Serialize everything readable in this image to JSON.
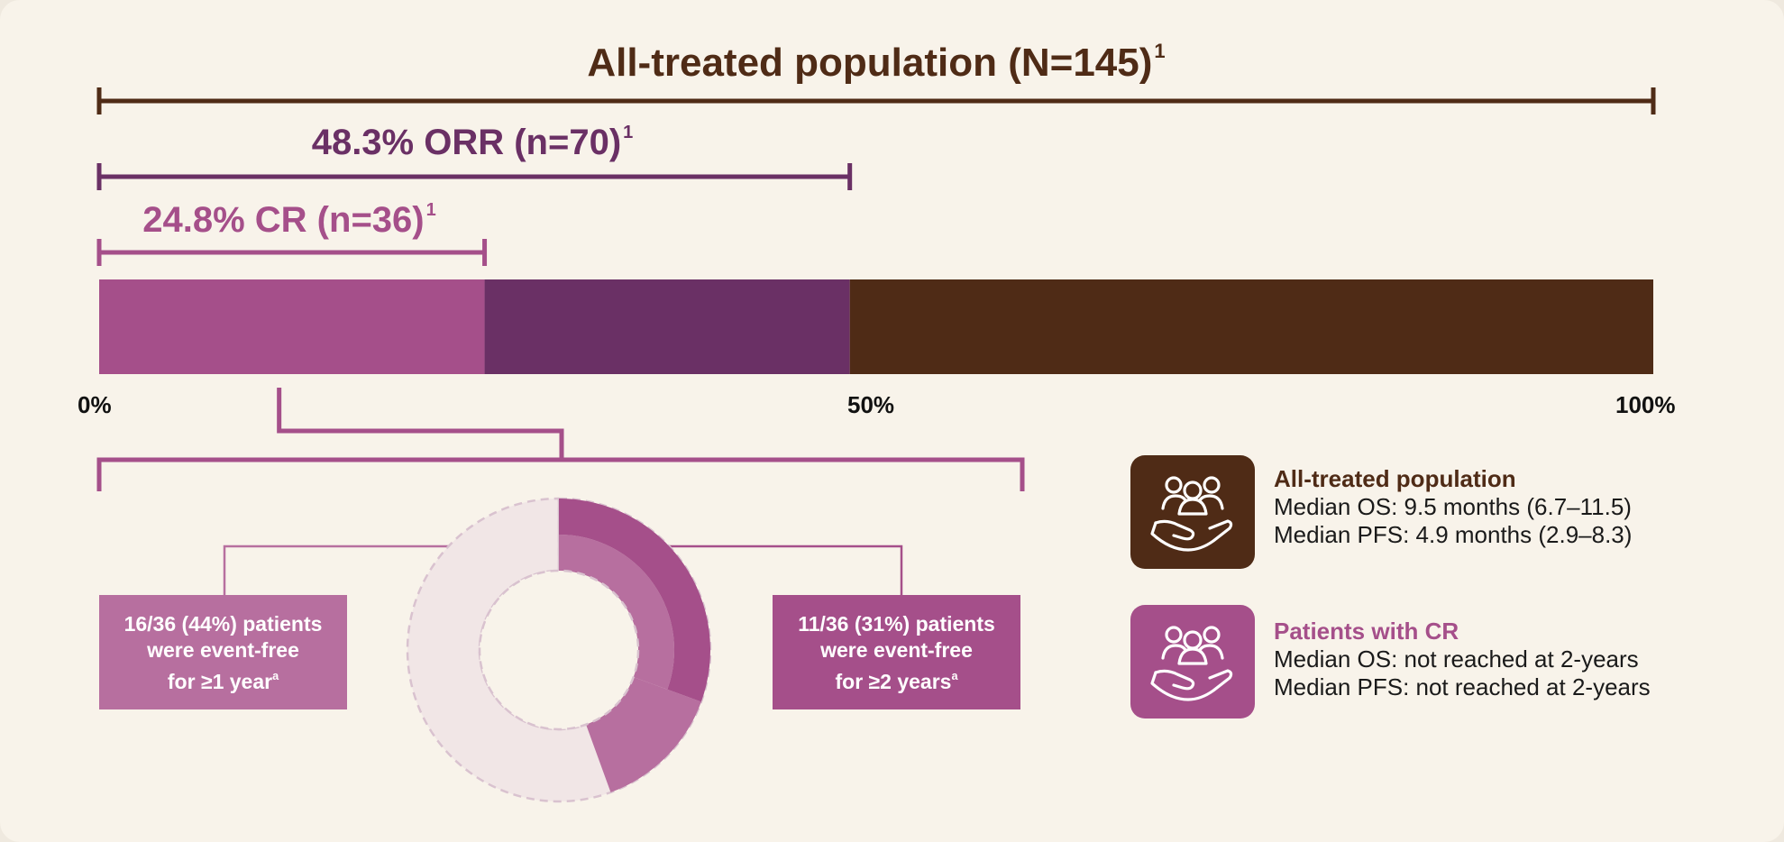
{
  "chart_data": {
    "type": "bar",
    "orientation": "horizontal",
    "stacked": true,
    "xlim": [
      0,
      100
    ],
    "ticks": [
      "0%",
      "50%",
      "100%"
    ],
    "groups": [
      {
        "pre": "All-treated population (N=145)",
        "sup": "1",
        "start": 0,
        "end": 100,
        "color": "#4f2b16"
      },
      {
        "pre": "48.3% ORR (n=70)",
        "sup": "1",
        "start": 0,
        "end": 48.3,
        "color": "#6a3065"
      },
      {
        "pre": "24.8% CR (n=36)",
        "sup": "1",
        "start": 0,
        "end": 24.8,
        "color": "#a54f8a"
      }
    ],
    "segments": [
      {
        "start": 0,
        "end": 24.8,
        "color": "#a54f8a"
      },
      {
        "start": 24.8,
        "end": 48.3,
        "color": "#6a3065"
      },
      {
        "start": 48.3,
        "end": 100,
        "color": "#4f2b16"
      }
    ],
    "donut": {
      "total": 36,
      "outer_value": 11,
      "inner_value": 16,
      "outer_color": "#a54f8a",
      "inner_color": "#b76f9f",
      "rest_color": "#f1e6e6"
    }
  },
  "callouts": {
    "left": {
      "l1": "16/36 (44%) patients",
      "l2": "were event-free",
      "l3": "for ≥1 year",
      "sup": "a",
      "color": "#b76f9f"
    },
    "right": {
      "l1": "11/36 (31%) patients",
      "l2": "were event-free",
      "l3": "for ≥2 years",
      "sup": "a",
      "color": "#a54f8a"
    }
  },
  "info": {
    "all": {
      "title": "All-treated population",
      "line1": "Median OS: 9.5 months (6.7–11.5)",
      "line2": "Median PFS: 4.9 months (2.9–8.3)",
      "icon": "people-in-hand-icon",
      "color": "#4f2b16"
    },
    "cr": {
      "title": "Patients with CR",
      "line1": "Median OS: not reached at 2-years",
      "line2": "Median PFS: not reached at 2-years",
      "icon": "people-in-hand-icon",
      "color": "#a54f8a"
    }
  }
}
